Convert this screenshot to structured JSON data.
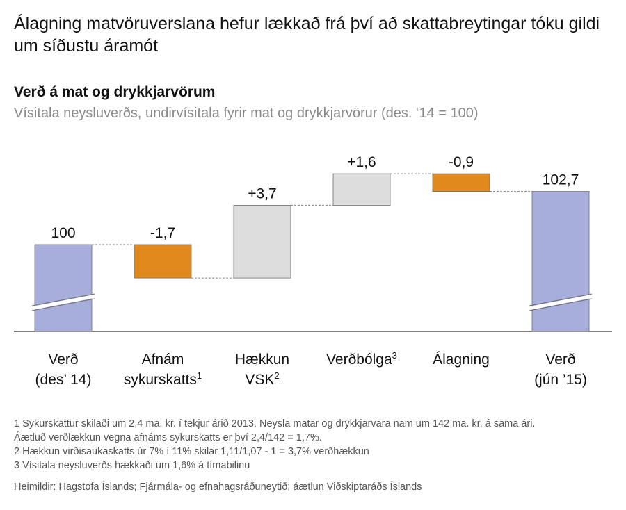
{
  "headline": "Álagning matvöruverslana hefur lækkað frá því að skattabreytingar tóku gildi um síðustu áramót",
  "chart_data": {
    "type": "waterfall",
    "title": "Verð á mat og drykkjarvörum",
    "subtitle": "Vísitala neysluverðs, undirvísitala fyrir mat og drykkjarvörur (des. ‘14 = 100)",
    "categories": [
      {
        "line1": "Verð",
        "line2": "(des’ 14)",
        "sup": ""
      },
      {
        "line1": "Afnám",
        "line2": "sykurskatts",
        "sup": "1"
      },
      {
        "line1": "Hækkun",
        "line2": "VSK",
        "sup": "2"
      },
      {
        "line1": "Verðbólga",
        "line2": "",
        "sup": "3"
      },
      {
        "line1": "Álagning",
        "line2": "",
        "sup": ""
      },
      {
        "line1": "Verð",
        "line2": "(jún ’15)",
        "sup": ""
      }
    ],
    "steps": [
      {
        "kind": "total",
        "value": 100,
        "label": "100"
      },
      {
        "kind": "change",
        "value": -1.7,
        "label": "-1,7"
      },
      {
        "kind": "change",
        "value": 3.7,
        "label": "+3,7"
      },
      {
        "kind": "change",
        "value": 1.6,
        "label": "+1,6"
      },
      {
        "kind": "change",
        "value": -0.9,
        "label": "-0,9"
      },
      {
        "kind": "total",
        "value": 102.7,
        "label": "102,7"
      }
    ],
    "axis_broken": true,
    "colors": {
      "total": "#a7aedc",
      "decrease": "#e08a1e",
      "increase": "#dcdcdc",
      "stroke": "#6e6e6e"
    }
  },
  "notes": {
    "n1a": "1 Sykurskattur skilaði um 2,4 ma. kr. í tekjur árið 2013. Neysla matar og drykkjarvara nam um 142 ma. kr. á sama ári.",
    "n1b": "Áætluð verðlækkun vegna afnáms sykurskatts er því 2,4/142 = 1,7%.",
    "n2": "2 Hækkun virðisaukaskatts úr 7% í 11% skilar 1,11/1,07 - 1 = 3,7% verðhækkun",
    "n3": "3 Vísitala neysluverðs hækkaði um 1,6% á tímabilinu",
    "source": "Heimildir: Hagstofa Íslands; Fjármála- og efnahagsráðuneytið; áætlun Viðskiptaráðs Íslands"
  }
}
